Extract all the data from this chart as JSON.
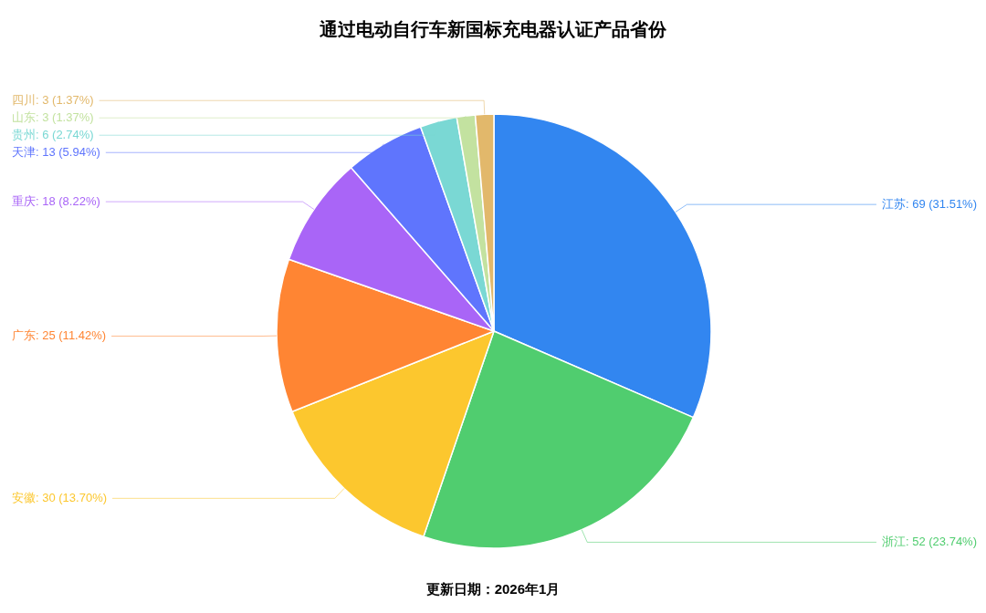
{
  "chart_data": {
    "type": "pie",
    "title": "通过电动自行车新国标充电器认证产品省份",
    "categories": [
      "江苏",
      "浙江",
      "安徽",
      "广东",
      "重庆",
      "天津",
      "贵州",
      "山东",
      "四川"
    ],
    "values": [
      69,
      52,
      30,
      25,
      18,
      13,
      6,
      3,
      3
    ],
    "colors": [
      "#3286f0",
      "#50cd6f",
      "#fcc72e",
      "#ff8533",
      "#a965f7",
      "#5f75fd",
      "#7ad8d4",
      "#c3e2a0",
      "#e2b86b"
    ],
    "value_labels": [
      "69 (31.51%)",
      "52 (23.74%)",
      "30 (13.70%)",
      "25 (11.42%)",
      "18 (8.22%)",
      "13 (5.94%)",
      "6 (2.74%)",
      "3 (1.37%)",
      "3 (1.37%)"
    ],
    "annotations": [
      "更新日期：2026年1月"
    ]
  }
}
